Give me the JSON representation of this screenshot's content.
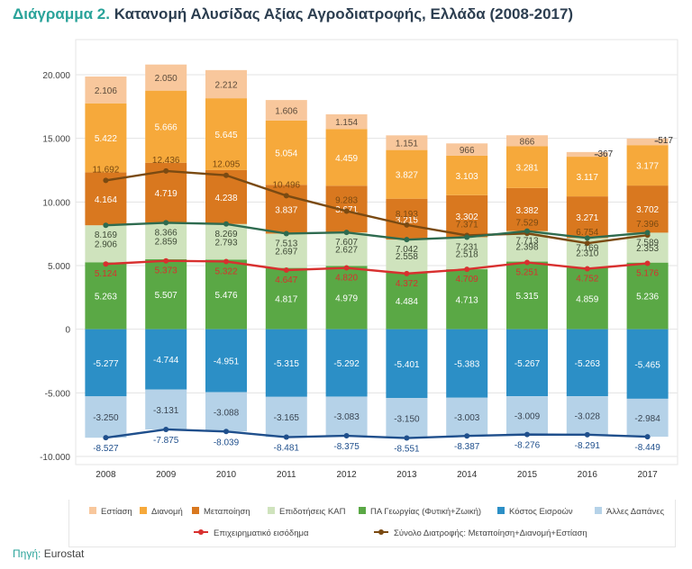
{
  "title": {
    "prefix": "Διάγραμμα 2.",
    "text": "Κατανομή Αλυσίδας Αξίας Αγροδιατροφής, Ελλάδα (2008-2017)"
  },
  "source": {
    "label": "Πηγή:",
    "value": "Eurostat"
  },
  "chart_data": {
    "type": "bar",
    "stacked": true,
    "categories": [
      "2008",
      "2009",
      "2010",
      "2011",
      "2012",
      "2013",
      "2014",
      "2015",
      "2016",
      "2017"
    ],
    "ylim": [
      -10000,
      20000
    ],
    "yticks": [
      -10000,
      -5000,
      0,
      5000,
      10000,
      15000,
      20000
    ],
    "ytick_labels": [
      "-10.000",
      "-5.000",
      "0",
      "5.000",
      "10.000",
      "15.000",
      "20.000"
    ],
    "grid": true,
    "legend_position": "bottom",
    "series": [
      {
        "name": "Εστίαση",
        "color": "#f8c79c",
        "stack": "pos",
        "values": [
          2106,
          2050,
          2212,
          1606,
          1154,
          1151,
          966,
          866,
          367,
          517
        ],
        "labels": [
          "2.106",
          "2.050",
          "2.212",
          "1.606",
          "1.154",
          "1.151",
          "966",
          "866",
          "367",
          "517"
        ]
      },
      {
        "name": "Διανομή",
        "color": "#f6a93b",
        "stack": "pos",
        "values": [
          5422,
          5666,
          5645,
          5054,
          4459,
          3827,
          3103,
          3281,
          3117,
          3177
        ],
        "labels": [
          "5.422",
          "5.666",
          "5.645",
          "5.054",
          "4.459",
          "3.827",
          "3.103",
          "3.281",
          "3.117",
          "3.177"
        ]
      },
      {
        "name": "Μεταποίηση",
        "color": "#d9781f",
        "stack": "pos",
        "values": [
          4164,
          4719,
          4238,
          3837,
          3671,
          3215,
          3302,
          3382,
          3271,
          3702
        ],
        "labels": [
          "4.164",
          "4.719",
          "4.238",
          "3.837",
          "3.671",
          "3.215",
          "3.302",
          "3.382",
          "3.271",
          "3.702"
        ]
      },
      {
        "name": "Επιδοτήσεις ΚΑΠ",
        "color": "#cfe3bd",
        "stack": "pos",
        "values": [
          2906,
          2859,
          2793,
          2697,
          2627,
          2558,
          2518,
          2398,
          2310,
          2353
        ],
        "labels": [
          "2.906",
          "2.859",
          "2.793",
          "2.697",
          "2.627",
          "2.558",
          "2.518",
          "2.398",
          "2.310",
          "2.353"
        ]
      },
      {
        "name": "ΠΑ Γεωργίας (Φυτική+Ζωική)",
        "color": "#5aa845",
        "stack": "pos",
        "values": [
          5263,
          5507,
          5476,
          4817,
          4979,
          4484,
          4713,
          5315,
          4859,
          5236
        ],
        "labels": [
          "5.263",
          "5.507",
          "5.476",
          "4.817",
          "4.979",
          "4.484",
          "4.713",
          "5.315",
          "4.859",
          "5.236"
        ]
      },
      {
        "name": "Κόστος Εισροών",
        "color": "#2c8fc6",
        "stack": "neg",
        "values": [
          -5277,
          -4744,
          -4951,
          -5315,
          -5292,
          -5401,
          -5383,
          -5267,
          -5263,
          -5465
        ],
        "labels": [
          "-5.277",
          "-4.744",
          "-4.951",
          "-5.315",
          "-5.292",
          "-5.401",
          "-5.383",
          "-5.267",
          "-5.263",
          "-5.465"
        ]
      },
      {
        "name": "Άλλες Δαπάνες",
        "color": "#b5d2e8",
        "stack": "neg",
        "values": [
          -3250,
          -3131,
          -3088,
          -3165,
          -3083,
          -3150,
          -3003,
          -3009,
          -3028,
          -2984
        ],
        "labels": [
          "-3.250",
          "-3.131",
          "-3.088",
          "-3.165",
          "-3.083",
          "-3.150",
          "-3.003",
          "-3.009",
          "-3.028",
          "-2.984"
        ]
      }
    ],
    "lines": [
      {
        "name": "Σύνολο Διατροφής: Μεταποίηση+Διανομή+Εστίαση",
        "color": "#7a4a12",
        "values": [
          11692,
          12436,
          12095,
          10496,
          9283,
          8193,
          7371,
          7529,
          6754,
          7396
        ],
        "labels": [
          "11.692",
          "12.436",
          "12.095",
          "10.496",
          "9.283",
          "8.193",
          "7.371",
          "7.529",
          "6.754",
          "7.396"
        ]
      },
      {
        "name": "",
        "color": "#2e6b4f",
        "values": [
          8169,
          8366,
          8269,
          7513,
          7607,
          7042,
          7231,
          7713,
          7169,
          7589
        ],
        "labels": [
          "8.169",
          "8.366",
          "8.269",
          "7.513",
          "7.607",
          "7.042",
          "7.231",
          "7.713",
          "7.169",
          "7.589"
        ]
      },
      {
        "name": "Επιχειρηματικό εισόδημα",
        "color": "#d8302f",
        "values": [
          5124,
          5373,
          5322,
          4647,
          4820,
          4372,
          4709,
          5251,
          4752,
          5176
        ],
        "labels": [
          "5.124",
          "5.373",
          "5.322",
          "4.647",
          "4.820",
          "4.372",
          "4.709",
          "5.251",
          "4.752",
          "5.176"
        ]
      },
      {
        "name": "",
        "color": "#1f4f8c",
        "values": [
          -8527,
          -7875,
          -8039,
          -8481,
          -8375,
          -8551,
          -8387,
          -8276,
          -8291,
          -8449
        ],
        "labels": [
          "-8.527",
          "-7.875",
          "-8.039",
          "-8.481",
          "-8.375",
          "-8.551",
          "-8.387",
          "-8.276",
          "-8.291",
          "-8.449"
        ]
      }
    ],
    "legend": {
      "row1": [
        {
          "label": "Εστίαση",
          "color": "#f8c79c"
        },
        {
          "label": "Διανομή",
          "color": "#f6a93b"
        },
        {
          "label": "Μεταποίηση",
          "color": "#d9781f"
        },
        {
          "label": "Επιδοτήσεις ΚΑΠ",
          "color": "#cfe3bd"
        },
        {
          "label": "ΠΑ Γεωργίας (Φυτική+Ζωική)",
          "color": "#5aa845"
        },
        {
          "label": "Κόστος Εισροών",
          "color": "#2c8fc6"
        },
        {
          "label": "Άλλες Δαπάνες",
          "color": "#b5d2e8"
        }
      ],
      "row2": [
        {
          "label": "Επιχειρηματικό εισόδημα",
          "color": "#d8302f"
        },
        {
          "label": "Σύνολο Διατροφής: Μεταποίηση+Διανομή+Εστίαση",
          "color": "#7a4a12"
        }
      ]
    }
  }
}
